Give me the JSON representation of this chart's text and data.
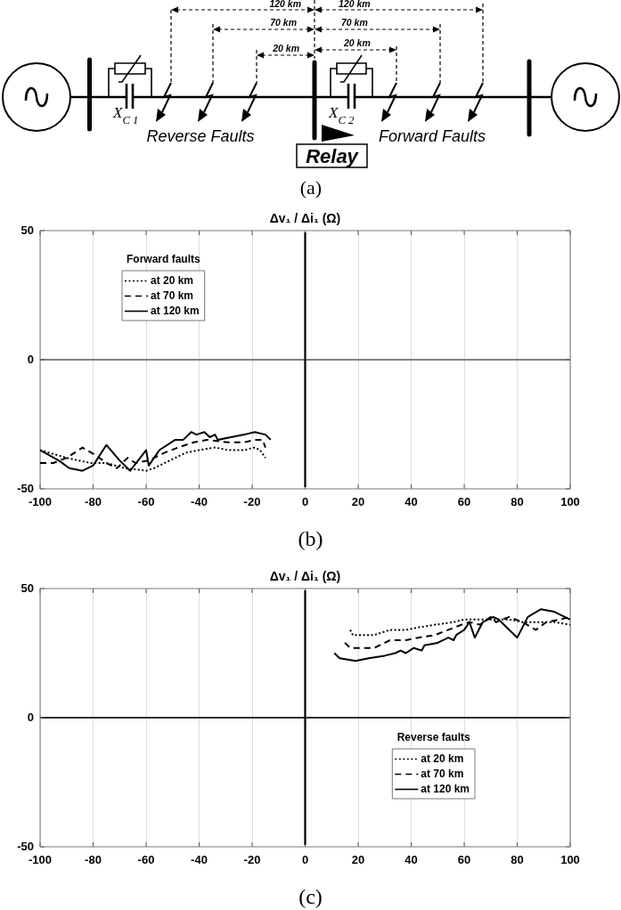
{
  "chart_data": [
    {
      "type": "other",
      "annotations": [
        "120 km",
        "70 km",
        "20 km",
        "120 km",
        "70 km",
        "20 km",
        "X$_{C 1}$",
        "X$_{C 2}$",
        "Reverse Faults",
        "Forward Faults",
        "Relay",
        "(a)"
      ]
    },
    {
      "type": "line",
      "title": "Δv₁ / Δi₁ (Ω)",
      "legend_title": "Forward faults",
      "legend": "top left",
      "grid": "x",
      "xlim": [
        -100,
        100
      ],
      "ylim": [
        -50,
        50
      ],
      "xticks": [
        -100,
        -80,
        -60,
        -40,
        -20,
        0,
        20,
        40,
        60,
        80,
        100
      ],
      "yticks": [
        -50,
        0,
        50
      ],
      "ref_lines": [
        {
          "axis": "x",
          "value": 0,
          "color": "#000000"
        },
        {
          "axis": "y",
          "value": 0,
          "color": "#808080"
        }
      ],
      "annotations": [
        "(b)"
      ],
      "series": [
        {
          "name": "at 20 km",
          "color": "#000000",
          "line_style": "dotted",
          "x": [
            -100,
            -90,
            -81,
            -75,
            -68,
            -60,
            -57,
            -51,
            -45,
            -40,
            -34,
            -29,
            -23,
            -19,
            -17,
            -15
          ],
          "values": [
            -35,
            -38,
            -40,
            -40,
            -42,
            -43,
            -42,
            -39,
            -36,
            -35,
            -34,
            -35,
            -35,
            -34,
            -35,
            -38
          ]
        },
        {
          "name": "at 70 km",
          "color": "#000000",
          "line_style": "dashed",
          "x": [
            -100,
            -95,
            -90,
            -84,
            -79,
            -75,
            -71,
            -67,
            -64,
            -59,
            -53,
            -48,
            -42,
            -37,
            -29,
            -23,
            -19,
            -16,
            -15
          ],
          "values": [
            -40,
            -40,
            -38,
            -34,
            -37,
            -40,
            -42,
            -38,
            -40,
            -39,
            -36,
            -34,
            -32,
            -31,
            -32,
            -32,
            -31,
            -31,
            -34
          ]
        },
        {
          "name": "at 120 km",
          "color": "#000000",
          "line_style": "solid",
          "x": [
            -100,
            -93,
            -89,
            -84,
            -80,
            -75,
            -70,
            -66,
            -60,
            -59,
            -55,
            -49,
            -46,
            -43,
            -41,
            -38,
            -36,
            -34,
            -33,
            -28,
            -23,
            -19,
            -15,
            -13
          ],
          "values": [
            -35,
            -39,
            -42,
            -43,
            -41,
            -33,
            -39,
            -43,
            -35,
            -41,
            -35,
            -31,
            -31,
            -28,
            -29,
            -28,
            -30,
            -29,
            -31,
            -30,
            -29,
            -28,
            -29,
            -31
          ]
        }
      ]
    },
    {
      "type": "line",
      "title": "Δv₁ / Δi₁ (Ω)",
      "legend_title": "Reverse faults",
      "legend": "bottom right",
      "grid": "x",
      "xlim": [
        -100,
        100
      ],
      "ylim": [
        -50,
        50
      ],
      "xticks": [
        -100,
        -80,
        -60,
        -40,
        -20,
        0,
        20,
        40,
        60,
        80,
        100
      ],
      "yticks": [
        -50,
        0,
        50
      ],
      "ref_lines": [
        {
          "axis": "x",
          "value": 0,
          "color": "#000000"
        },
        {
          "axis": "y",
          "value": 0,
          "color": "#303030"
        }
      ],
      "annotations": [
        "(c)"
      ],
      "series": [
        {
          "name": "at 20 km",
          "color": "#000000",
          "line_style": "dotted",
          "x": [
            17,
            18,
            22,
            26,
            32,
            38,
            43,
            49,
            56,
            60,
            66,
            71,
            77,
            82,
            88,
            94,
            100
          ],
          "values": [
            34,
            32,
            32,
            32,
            34,
            34,
            35,
            36,
            37,
            38,
            38,
            38,
            38,
            37,
            37,
            37,
            36
          ]
        },
        {
          "name": "at 70 km",
          "color": "#000000",
          "line_style": "dashed",
          "x": [
            15,
            17,
            22,
            26,
            32,
            38,
            43,
            49,
            54,
            59,
            62,
            66,
            70,
            72,
            77,
            82,
            87,
            91,
            96,
            100
          ],
          "values": [
            29,
            27,
            27,
            27,
            30,
            30,
            31,
            32,
            34,
            36,
            37,
            36,
            39,
            37,
            39,
            37,
            34,
            37,
            38,
            39
          ]
        },
        {
          "name": "at 120 km",
          "color": "#000000",
          "line_style": "solid",
          "x": [
            11,
            13,
            19,
            24,
            30,
            34,
            36,
            38,
            41,
            44,
            45,
            50,
            54,
            56,
            57,
            60,
            62,
            64,
            67,
            71,
            73,
            80,
            84,
            89,
            94,
            100
          ],
          "values": [
            25,
            23,
            22,
            23,
            24,
            25,
            26,
            25,
            27,
            26,
            28,
            29,
            31,
            30,
            32,
            34,
            37,
            31,
            37,
            39,
            38,
            31,
            39,
            42,
            41,
            38
          ]
        }
      ]
    }
  ]
}
